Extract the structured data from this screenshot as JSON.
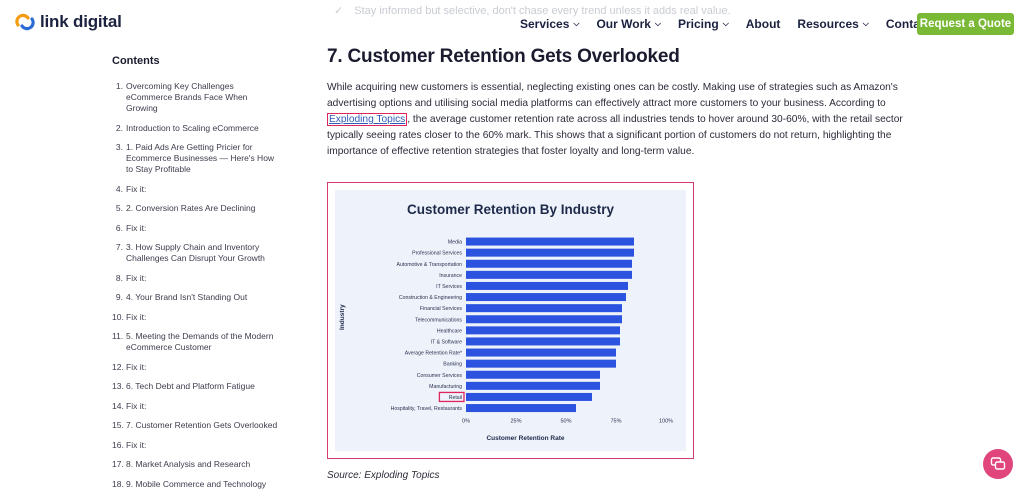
{
  "header": {
    "logo_text": "link digital",
    "ghost_text": "Stay informed but selective, don't chase every trend unless it adds real value.",
    "nav": [
      {
        "label": "Services",
        "has_dropdown": true
      },
      {
        "label": "Our Work",
        "has_dropdown": true
      },
      {
        "label": "Pricing",
        "has_dropdown": true
      },
      {
        "label": "About",
        "has_dropdown": false
      },
      {
        "label": "Resources",
        "has_dropdown": true
      },
      {
        "label": "Contact",
        "has_dropdown": false
      }
    ],
    "cta_label": "Request a Quote",
    "colors": {
      "cta": "#79b935",
      "logo_orange": "#f39c12",
      "logo_blue": "#2c6bd6"
    }
  },
  "toc": {
    "title": "Contents",
    "items": [
      {
        "num": "1.",
        "text": "Overcoming Key Challenges eCommerce Brands Face When Growing"
      },
      {
        "num": "2.",
        "text": "Introduction to Scaling eCommerce"
      },
      {
        "num": "3.",
        "text": "1. Paid Ads Are Getting Pricier for Ecommerce Businesses — Here's How to Stay Profitable"
      },
      {
        "num": "4.",
        "text": "Fix it:"
      },
      {
        "num": "5.",
        "text": "2. Conversion Rates Are Declining"
      },
      {
        "num": "6.",
        "text": "Fix it:"
      },
      {
        "num": "7.",
        "text": "3. How Supply Chain and Inventory Challenges Can Disrupt Your Growth"
      },
      {
        "num": "8.",
        "text": "Fix it:"
      },
      {
        "num": "9.",
        "text": "4. Your Brand Isn't Standing Out"
      },
      {
        "num": "10.",
        "text": "Fix it:"
      },
      {
        "num": "11.",
        "text": "5. Meeting the Demands of the Modern eCommerce Customer"
      },
      {
        "num": "12.",
        "text": "Fix it:"
      },
      {
        "num": "13.",
        "text": "6. Tech Debt and Platform Fatigue"
      },
      {
        "num": "14.",
        "text": "Fix it:"
      },
      {
        "num": "15.",
        "text": "7. Customer Retention Gets Overlooked"
      },
      {
        "num": "16.",
        "text": "Fix it:"
      },
      {
        "num": "17.",
        "text": "8. Market Analysis and Research"
      },
      {
        "num": "18.",
        "text": "9. Mobile Commerce and Technology"
      }
    ]
  },
  "article": {
    "heading": "7. Customer Retention Gets Overlooked",
    "para_before_link": "While acquiring new customers is essential, neglecting existing ones can be costly. Making use of strategies such as Amazon's advertising options and utilising social media platforms can effectively attract more customers to your business. According to ",
    "link_text": "Exploding Topics",
    "para_after_link": ", the average customer retention rate across all industries tends to hover around 30-60%, with the retail sector typically seeing rates closer to the 60% mark. This shows that a significant portion of customers do not return, highlighting the importance of effective retention strategies that foster loyalty and long-term value.",
    "source": "Source: Exploding Topics"
  },
  "chart_data": {
    "type": "bar",
    "orientation": "horizontal",
    "title": "Customer Retention By Industry",
    "xlabel": "Customer Retention Rate",
    "ylabel": "Industry",
    "categories": [
      "Media",
      "Professional Services",
      "Automotive & Transportation",
      "Insurance",
      "IT Services",
      "Construction & Engineering",
      "Financial Services",
      "Telecommunications",
      "Healthcare",
      "IT & Software",
      "Average Retention Rate*",
      "Banking",
      "Consumer Services",
      "Manufacturing",
      "Retail",
      "Hospitality, Travel, Restaurants"
    ],
    "values": [
      84,
      84,
      83,
      83,
      81,
      80,
      78,
      78,
      77,
      77,
      75,
      75,
      67,
      67,
      63,
      55
    ],
    "xlim": [
      0,
      100
    ],
    "xticks": [
      "0%",
      "25%",
      "50%",
      "75%",
      "100%"
    ],
    "bar_color": "#2c52e0",
    "highlighted_category": "Retail",
    "highlight_color": "#e0245e"
  }
}
